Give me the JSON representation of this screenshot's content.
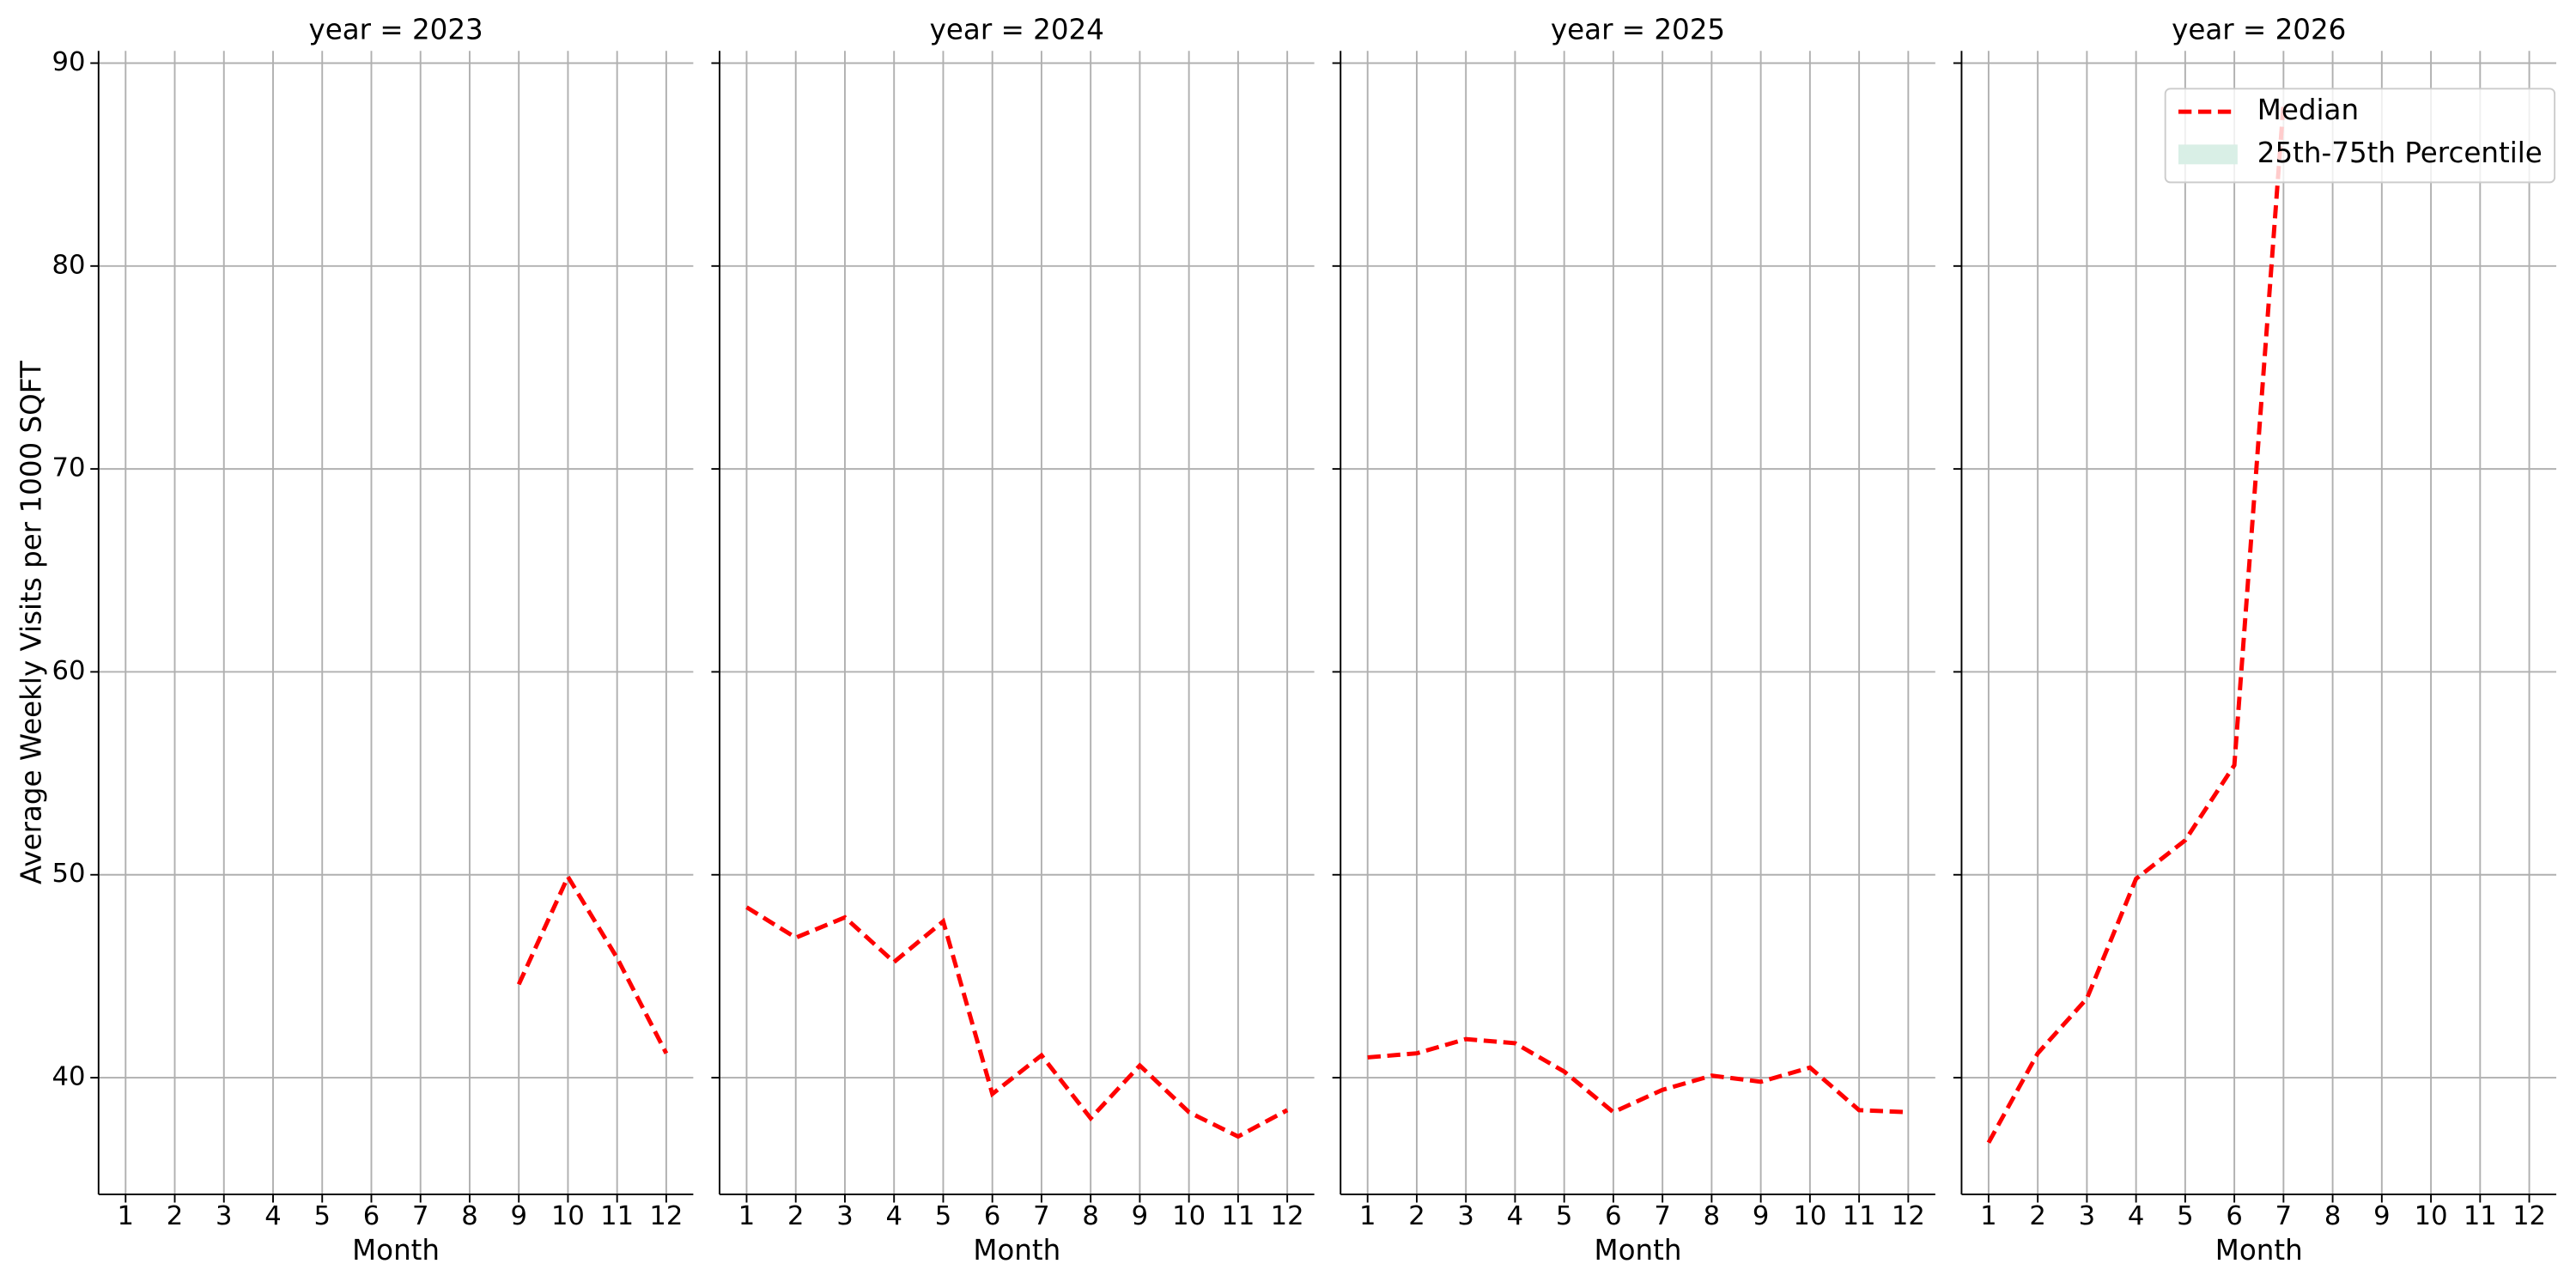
{
  "chart_data": [
    {
      "type": "line",
      "title": "year = 2023",
      "xlabel": "Month",
      "ylabel": "Average Weekly Visits per 1000 SQFT",
      "x": [
        1,
        2,
        3,
        4,
        5,
        6,
        7,
        8,
        9,
        10,
        11,
        12
      ],
      "series": [
        {
          "color": "#ff0000",
          "values": [
            null,
            null,
            null,
            null,
            null,
            null,
            null,
            null,
            44.6,
            49.9,
            45.9,
            41.2
          ]
        }
      ],
      "xlim": [
        0.45,
        12.55
      ],
      "xticks": [
        1,
        2,
        3,
        4,
        5,
        6,
        7,
        8,
        9,
        10,
        11,
        12
      ],
      "ylim": [
        34.25,
        90.6
      ],
      "yticks": [
        40,
        50,
        60,
        70,
        80,
        90
      ],
      "grid": true
    },
    {
      "type": "line",
      "title": "year = 2024",
      "xlabel": "Month",
      "x": [
        1,
        2,
        3,
        4,
        5,
        6,
        7,
        8,
        9,
        10,
        11,
        12
      ],
      "series": [
        {
          "color": "#ff0000",
          "values": [
            48.4,
            46.9,
            47.9,
            45.7,
            47.7,
            39.2,
            41.1,
            38.0,
            40.6,
            38.3,
            37.1,
            38.4
          ]
        }
      ],
      "xlim": [
        0.45,
        12.55
      ],
      "xticks": [
        1,
        2,
        3,
        4,
        5,
        6,
        7,
        8,
        9,
        10,
        11,
        12
      ],
      "ylim": [
        34.25,
        90.6
      ],
      "yticks": [
        40,
        50,
        60,
        70,
        80,
        90
      ],
      "grid": true
    },
    {
      "type": "line",
      "title": "year = 2025",
      "xlabel": "Month",
      "x": [
        1,
        2,
        3,
        4,
        5,
        6,
        7,
        8,
        9,
        10,
        11,
        12
      ],
      "series": [
        {
          "color": "#ff0000",
          "values": [
            41.0,
            41.2,
            41.9,
            41.7,
            40.3,
            38.3,
            39.4,
            40.1,
            39.8,
            40.5,
            38.4,
            38.3
          ]
        }
      ],
      "xlim": [
        0.45,
        12.55
      ],
      "xticks": [
        1,
        2,
        3,
        4,
        5,
        6,
        7,
        8,
        9,
        10,
        11,
        12
      ],
      "ylim": [
        34.25,
        90.6
      ],
      "yticks": [
        40,
        50,
        60,
        70,
        80,
        90
      ],
      "grid": true
    },
    {
      "type": "line",
      "title": "year = 2026",
      "xlabel": "Month",
      "x": [
        1,
        2,
        3,
        4,
        5,
        6,
        7,
        8,
        9,
        10,
        11,
        12
      ],
      "series": [
        {
          "name": "Median",
          "color": "#ff0000",
          "values": [
            36.8,
            41.2,
            43.9,
            49.8,
            51.7,
            55.4,
            88.0,
            null,
            null,
            null,
            null,
            null
          ]
        },
        {
          "name": "25th-75th Percentile",
          "color": "#d9efe6",
          "style": "band"
        }
      ],
      "xlim": [
        0.45,
        12.55
      ],
      "xticks": [
        1,
        2,
        3,
        4,
        5,
        6,
        7,
        8,
        9,
        10,
        11,
        12
      ],
      "ylim": [
        34.25,
        90.6
      ],
      "yticks": [
        40,
        50,
        60,
        70,
        80,
        90
      ],
      "grid": true,
      "legend": "upper right"
    }
  ]
}
